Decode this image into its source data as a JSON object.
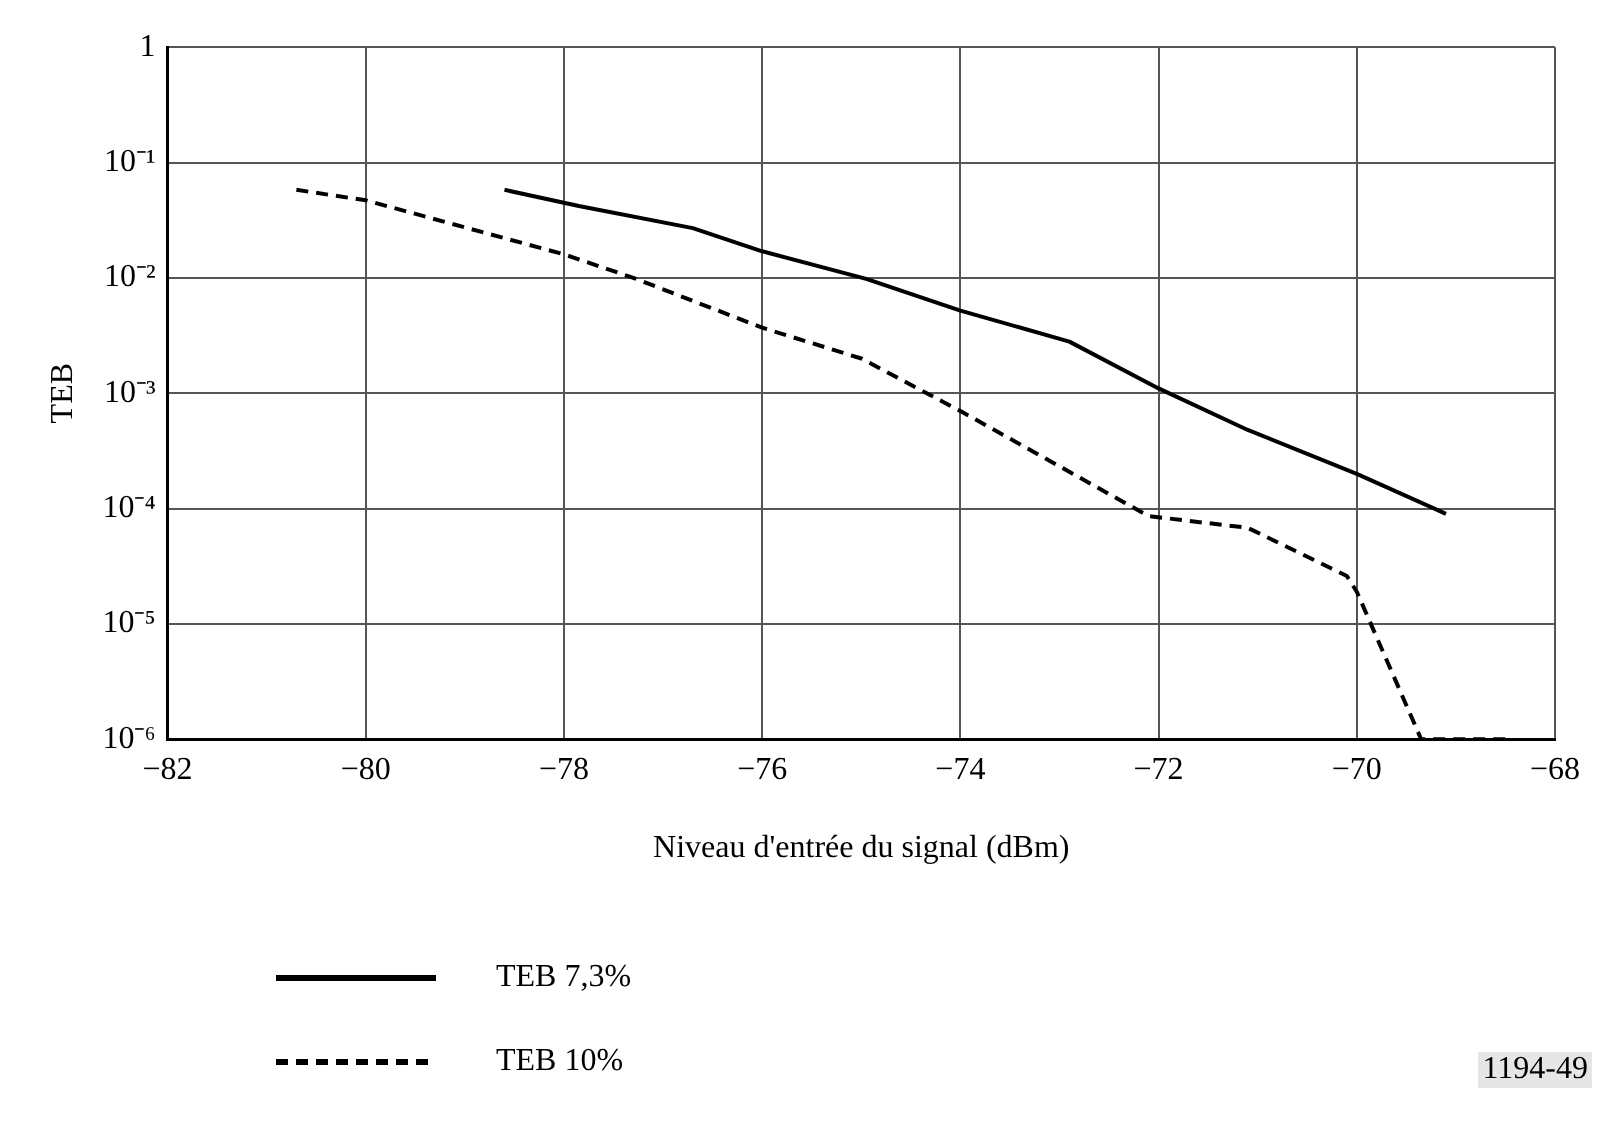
{
  "chart_data": {
    "type": "line",
    "xlabel": "Niveau d'entrée du signal (dBm)",
    "ylabel": "TEB",
    "log": "y",
    "grid": true,
    "legend": "bottom",
    "marker": "none",
    "xlim": [
      -82,
      -68
    ],
    "xticks": [
      {
        "value": -82,
        "label": "−82"
      },
      {
        "value": -80,
        "label": "−80"
      },
      {
        "value": -78,
        "label": "−78"
      },
      {
        "value": -76,
        "label": "−76"
      },
      {
        "value": -74,
        "label": "−74"
      },
      {
        "value": -72,
        "label": "−72"
      },
      {
        "value": -70,
        "label": "−70"
      },
      {
        "value": -68,
        "label": "−68"
      }
    ],
    "ylim": [
      1e-06,
      1
    ],
    "yticks": [
      {
        "value": 1e-06,
        "label": "10⁻⁶"
      },
      {
        "value": 1e-05,
        "label": "10⁻⁵"
      },
      {
        "value": 0.0001,
        "label": "10⁻⁴"
      },
      {
        "value": 0.001,
        "label": "10⁻³"
      },
      {
        "value": 0.01,
        "label": "10⁻²"
      },
      {
        "value": 0.1,
        "label": "10⁻¹"
      },
      {
        "value": 1,
        "label": "1"
      }
    ],
    "series": [
      {
        "name": "TEB 7,3%",
        "color": "#000000",
        "line_style": "solid",
        "x": [
          -78.6,
          -77.85,
          -76.7,
          -76.0,
          -74.95,
          -74.0,
          -72.9,
          -72.0,
          -71.1,
          -70.0,
          -69.1
        ],
        "values": [
          0.058,
          0.042,
          0.027,
          0.017,
          0.0098,
          0.0052,
          0.0028,
          0.0011,
          0.00048,
          0.0002,
          9e-05
        ]
      },
      {
        "name": "TEB 10%",
        "color": "#000000",
        "line_style": "dashed",
        "x": [
          -80.7,
          -80.0,
          -78.0,
          -77.3,
          -76.0,
          -75.0,
          -74.0,
          -72.95,
          -72.1,
          -71.1,
          -70.1,
          -70.0,
          -69.35,
          -68.5
        ],
        "values": [
          0.058,
          0.047,
          0.016,
          0.01,
          0.0037,
          0.002,
          0.0007,
          0.00022,
          8.6e-05,
          6.8e-05,
          2.6e-05,
          1.9e-05,
          1e-06,
          1e-06
        ]
      }
    ],
    "annotations": [
      "1194-49"
    ]
  }
}
